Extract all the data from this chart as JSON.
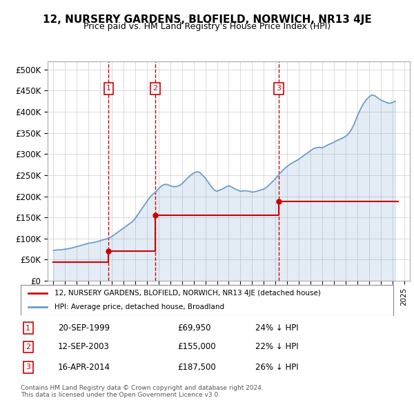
{
  "title": "12, NURSERY GARDENS, BLOFIELD, NORWICH, NR13 4JE",
  "subtitle": "Price paid vs. HM Land Registry's House Price Index (HPI)",
  "legend_label_red": "12, NURSERY GARDENS, BLOFIELD, NORWICH, NR13 4JE (detached house)",
  "legend_label_blue": "HPI: Average price, detached house, Broadland",
  "footer": "Contains HM Land Registry data © Crown copyright and database right 2024.\nThis data is licensed under the Open Government Licence v3.0.",
  "sales": [
    {
      "num": 1,
      "date": "20-SEP-1999",
      "price": 69950,
      "pct": "24%",
      "x": 1999.72
    },
    {
      "num": 2,
      "date": "12-SEP-2003",
      "price": 155000,
      "pct": "22%",
      "x": 2003.7
    },
    {
      "num": 3,
      "date": "16-APR-2014",
      "price": 187500,
      "pct": "26%",
      "x": 2014.29
    }
  ],
  "ylim": [
    0,
    520000
  ],
  "yticks": [
    0,
    50000,
    100000,
    150000,
    200000,
    250000,
    300000,
    350000,
    400000,
    450000,
    500000
  ],
  "ytick_labels": [
    "£0",
    "£50K",
    "£100K",
    "£150K",
    "£200K",
    "£250K",
    "£300K",
    "£350K",
    "£400K",
    "£450K",
    "£500K"
  ],
  "xlim": [
    1994.5,
    2025.5
  ],
  "hpi_x": [
    1995.0,
    1995.25,
    1995.5,
    1995.75,
    1996.0,
    1996.25,
    1996.5,
    1996.75,
    1997.0,
    1997.25,
    1997.5,
    1997.75,
    1998.0,
    1998.25,
    1998.5,
    1998.75,
    1999.0,
    1999.25,
    1999.5,
    1999.75,
    2000.0,
    2000.25,
    2000.5,
    2000.75,
    2001.0,
    2001.25,
    2001.5,
    2001.75,
    2002.0,
    2002.25,
    2002.5,
    2002.75,
    2003.0,
    2003.25,
    2003.5,
    2003.75,
    2004.0,
    2004.25,
    2004.5,
    2004.75,
    2005.0,
    2005.25,
    2005.5,
    2005.75,
    2006.0,
    2006.25,
    2006.5,
    2006.75,
    2007.0,
    2007.25,
    2007.5,
    2007.75,
    2008.0,
    2008.25,
    2008.5,
    2008.75,
    2009.0,
    2009.25,
    2009.5,
    2009.75,
    2010.0,
    2010.25,
    2010.5,
    2010.75,
    2011.0,
    2011.25,
    2011.5,
    2011.75,
    2012.0,
    2012.25,
    2012.5,
    2012.75,
    2013.0,
    2013.25,
    2013.5,
    2013.75,
    2014.0,
    2014.25,
    2014.5,
    2014.75,
    2015.0,
    2015.25,
    2015.5,
    2015.75,
    2016.0,
    2016.25,
    2016.5,
    2016.75,
    2017.0,
    2017.25,
    2017.5,
    2017.75,
    2018.0,
    2018.25,
    2018.5,
    2018.75,
    2019.0,
    2019.25,
    2019.5,
    2019.75,
    2020.0,
    2020.25,
    2020.5,
    2020.75,
    2021.0,
    2021.25,
    2021.5,
    2021.75,
    2022.0,
    2022.25,
    2022.5,
    2022.75,
    2023.0,
    2023.25,
    2023.5,
    2023.75,
    2024.0,
    2024.25
  ],
  "hpi_y": [
    72000,
    73000,
    73500,
    74000,
    75000,
    76000,
    77500,
    79000,
    81000,
    83000,
    85000,
    87000,
    89000,
    90000,
    91500,
    93000,
    95000,
    97000,
    99000,
    101000,
    105000,
    110000,
    115000,
    120000,
    125000,
    130000,
    135000,
    140000,
    148000,
    158000,
    168000,
    178000,
    188000,
    198000,
    205000,
    210000,
    218000,
    225000,
    228000,
    228000,
    225000,
    223000,
    223000,
    225000,
    230000,
    237000,
    244000,
    250000,
    255000,
    258000,
    257000,
    250000,
    243000,
    233000,
    223000,
    215000,
    212000,
    215000,
    218000,
    222000,
    225000,
    222000,
    218000,
    215000,
    212000,
    213000,
    213000,
    212000,
    210000,
    211000,
    213000,
    215000,
    217000,
    222000,
    228000,
    235000,
    242000,
    250000,
    258000,
    265000,
    271000,
    276000,
    280000,
    284000,
    288000,
    293000,
    298000,
    303000,
    308000,
    313000,
    315000,
    316000,
    315000,
    318000,
    322000,
    325000,
    328000,
    332000,
    335000,
    338000,
    342000,
    348000,
    358000,
    372000,
    390000,
    405000,
    418000,
    428000,
    435000,
    440000,
    438000,
    433000,
    428000,
    425000,
    422000,
    420000,
    422000,
    425000
  ],
  "red_line_x": [
    1995.0,
    1999.72,
    1999.72,
    2003.7,
    2003.7,
    2014.29,
    2014.29,
    2024.5
  ],
  "red_line_y": [
    45000,
    45000,
    69950,
    69950,
    155000,
    155000,
    187500,
    187500
  ],
  "sale_marker_color": "#cc0000",
  "hpi_color": "#6699cc",
  "red_color": "#cc0000",
  "bg_color": "#ffffff",
  "grid_color": "#cccccc",
  "vline_color": "#cc0000",
  "box_color": "#cc0000",
  "shade_color": "#ddeeff"
}
